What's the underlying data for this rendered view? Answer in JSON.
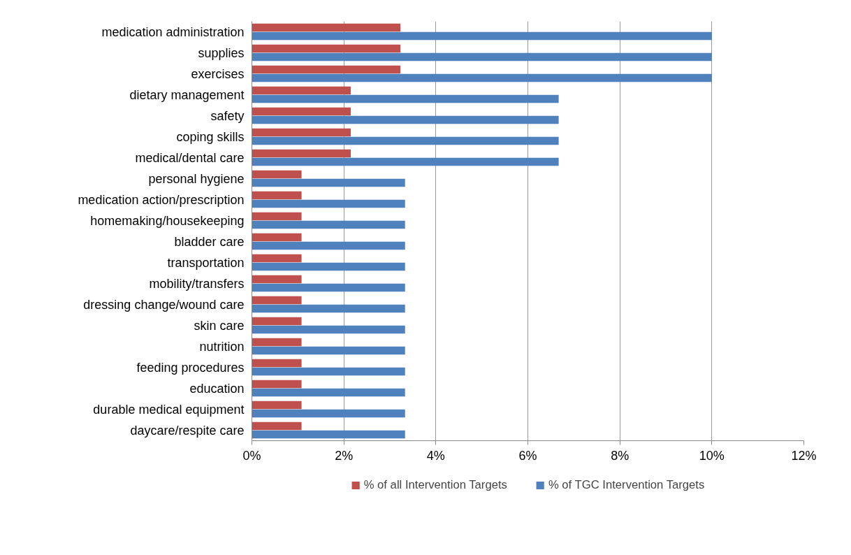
{
  "chart_data": {
    "type": "bar",
    "orientation": "horizontal",
    "categories": [
      "medication administration",
      "supplies",
      "exercises",
      "dietary management",
      "safety",
      "coping skills",
      "medical/dental care",
      "personal hygiene",
      "medication action/prescription",
      "homemaking/housekeeping",
      "bladder care",
      "transportation",
      "mobility/transfers",
      "dressing change/wound care",
      "skin care",
      "nutrition",
      "feeding procedures",
      "education",
      "durable medical equipment",
      "daycare/respite care"
    ],
    "series": [
      {
        "name": "% of all Intervention Targets",
        "color": "#c0504d",
        "values": [
          3.23,
          3.23,
          3.23,
          2.15,
          2.15,
          2.15,
          2.15,
          1.08,
          1.08,
          1.08,
          1.08,
          1.08,
          1.08,
          1.08,
          1.08,
          1.08,
          1.08,
          1.08,
          1.08,
          1.08
        ]
      },
      {
        "name": "% of TGC Intervention Targets",
        "color": "#4f81bd",
        "values": [
          10,
          10,
          10,
          6.67,
          6.67,
          6.67,
          6.67,
          3.33,
          3.33,
          3.33,
          3.33,
          3.33,
          3.33,
          3.33,
          3.33,
          3.33,
          3.33,
          3.33,
          3.33,
          3.33
        ]
      }
    ],
    "xlim": [
      0,
      12
    ],
    "xticks": [
      {
        "value": 0,
        "label": "0%"
      },
      {
        "value": 2,
        "label": "2%"
      },
      {
        "value": 4,
        "label": "4%"
      },
      {
        "value": 6,
        "label": "6%"
      },
      {
        "value": 8,
        "label": "8%"
      },
      {
        "value": 10,
        "label": "10%"
      },
      {
        "value": 12,
        "label": "12%"
      }
    ],
    "grid": "x",
    "legend": "bottom"
  }
}
